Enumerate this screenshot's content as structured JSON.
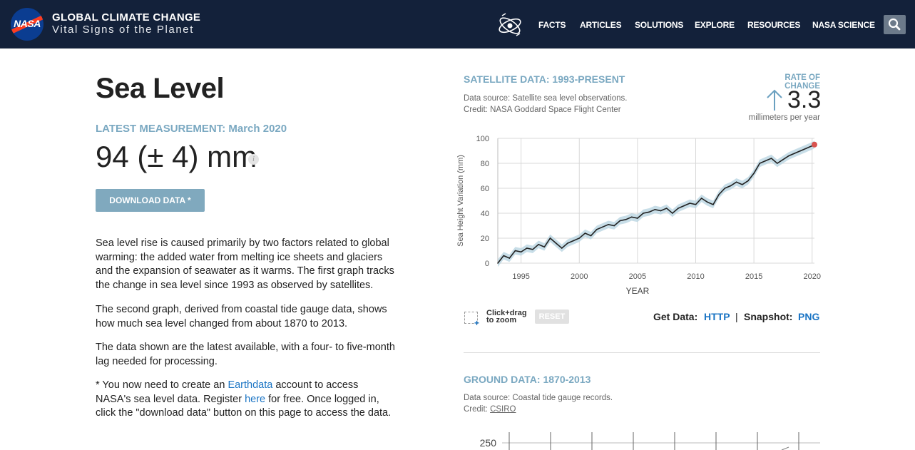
{
  "header": {
    "logo_text": "NASA",
    "title": "GLOBAL CLIMATE CHANGE",
    "subtitle": "Vital Signs of the Planet",
    "nav": [
      "FACTS",
      "ARTICLES",
      "SOLUTIONS",
      "EXPLORE",
      "RESOURCES",
      "NASA SCIENCE"
    ],
    "icons": {
      "home": "atom-icon",
      "search": "search-icon"
    },
    "colors": {
      "background": "#13213a"
    }
  },
  "main": {
    "title": "Sea Level",
    "latest_label": "LATEST MEASUREMENT: March 2020",
    "measurement": "94 (± 4) mm",
    "info_icon": "i",
    "download_label": "DOWNLOAD DATA *",
    "paragraphs": [
      "Sea level rise is caused primarily by two factors related to global warming: the added water from melting ice sheets and glaciers and the expansion of seawater as it warms. The first graph tracks the change in sea level since 1993 as observed by satellites.",
      "The second graph, derived from coastal tide gauge data, shows how much sea level changed from about 1870 to 2013.",
      "The data shown are the latest available, with a four- to five-month lag needed for processing."
    ],
    "note": {
      "before": "* You now need to create an ",
      "link1": "Earthdata",
      "middle": " account to access NASA's sea level data. Register ",
      "link2": "here",
      "after": " for free. Once logged in, click the \"download data\" button on this page to access the data."
    }
  },
  "satellite": {
    "title": "SATELLITE DATA: 1993-PRESENT",
    "source": "Data source: Satellite sea level observations.",
    "credit": "Credit: NASA Goddard Space Flight Center",
    "rate_label": "RATE OF CHANGE",
    "rate_value": "3.3",
    "rate_unit": "millimeters per year",
    "zoom_hint": "Click+drag to zoom",
    "reset_label": "RESET",
    "get_data_label": "Get Data:",
    "get_data_link": "HTTP",
    "separator": "|",
    "snapshot_label": "Snapshot:",
    "snapshot_link": "PNG"
  },
  "ground": {
    "title": "GROUND DATA: 1870-2013",
    "source": "Data source: Coastal tide gauge records.",
    "credit_prefix": "Credit: ",
    "credit_link": "CSIRO",
    "visible_tick": "250"
  },
  "chart_data": [
    {
      "type": "line",
      "title": "",
      "xlabel": "YEAR",
      "ylabel": "Sea Height Variation (mm)",
      "xlim": [
        1993,
        2020.2
      ],
      "ylim": [
        0,
        100
      ],
      "xticks": [
        1995,
        2000,
        2005,
        2010,
        2015,
        2020
      ],
      "yticks": [
        0,
        20,
        40,
        60,
        80,
        100
      ],
      "grid": true,
      "colors": {
        "line": "#222222",
        "band": "#b6d3e0",
        "latest_point": "#d9534f"
      },
      "x": [
        1993.0,
        1993.5,
        1994.0,
        1994.5,
        1995.0,
        1995.5,
        1996.0,
        1996.5,
        1997.0,
        1997.5,
        1998.0,
        1998.5,
        1999.0,
        1999.5,
        2000.0,
        2000.5,
        2001.0,
        2001.5,
        2002.0,
        2002.5,
        2003.0,
        2003.5,
        2004.0,
        2004.5,
        2005.0,
        2005.5,
        2006.0,
        2006.5,
        2007.0,
        2007.5,
        2008.0,
        2008.5,
        2009.0,
        2009.5,
        2010.0,
        2010.5,
        2011.0,
        2011.5,
        2012.0,
        2012.5,
        2013.0,
        2013.5,
        2014.0,
        2014.5,
        2015.0,
        2015.5,
        2016.0,
        2016.5,
        2017.0,
        2017.5,
        2018.0,
        2018.5,
        2019.0,
        2019.5,
        2020.0,
        2020.2
      ],
      "values": [
        0,
        6,
        4,
        10,
        9,
        12,
        11,
        15,
        13,
        20,
        16,
        12,
        16,
        18,
        20,
        24,
        22,
        27,
        29,
        31,
        30,
        34,
        35,
        37,
        36,
        40,
        41,
        43,
        42,
        44,
        40,
        44,
        46,
        48,
        47,
        52,
        49,
        47,
        55,
        60,
        62,
        65,
        63,
        66,
        72,
        80,
        82,
        84,
        80,
        83,
        86,
        88,
        90,
        92,
        94,
        95
      ]
    },
    {
      "type": "line",
      "title": "",
      "yticks": [
        250
      ]
    }
  ]
}
